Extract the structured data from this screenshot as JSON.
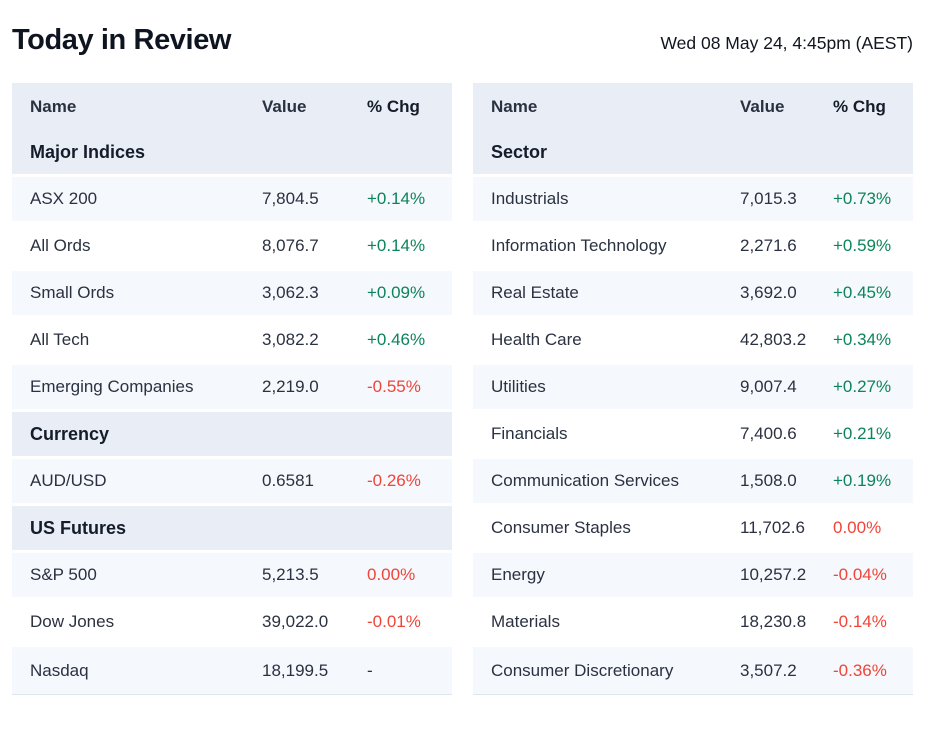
{
  "page": {
    "title": "Today in Review",
    "timestamp": "Wed 08 May 24, 4:45pm (AEST)"
  },
  "colors": {
    "positive": "#0c8459",
    "negative": "#f04438",
    "header_bg": "#e9eef6",
    "row_alt_bg": "#f5f8fc"
  },
  "tables": [
    {
      "id": "indices",
      "columns": [
        "Name",
        "Value",
        "% Chg"
      ],
      "sections": [
        {
          "label": "Major Indices",
          "rows": [
            {
              "name": "ASX 200",
              "value": "7,804.5",
              "chg": "+0.14%",
              "dir": "up"
            },
            {
              "name": "All Ords",
              "value": "8,076.7",
              "chg": "+0.14%",
              "dir": "up"
            },
            {
              "name": "Small Ords",
              "value": "3,062.3",
              "chg": "+0.09%",
              "dir": "up"
            },
            {
              "name": "All Tech",
              "value": "3,082.2",
              "chg": "+0.46%",
              "dir": "up"
            },
            {
              "name": "Emerging Companies",
              "value": "2,219.0",
              "chg": "-0.55%",
              "dir": "down"
            }
          ]
        },
        {
          "label": "Currency",
          "rows": [
            {
              "name": "AUD/USD",
              "value": "0.6581",
              "chg": "-0.26%",
              "dir": "down"
            }
          ]
        },
        {
          "label": "US Futures",
          "rows": [
            {
              "name": "S&P 500",
              "value": "5,213.5",
              "chg": "0.00%",
              "dir": "down"
            },
            {
              "name": "Dow Jones",
              "value": "39,022.0",
              "chg": "-0.01%",
              "dir": "down"
            },
            {
              "name": "Nasdaq",
              "value": "18,199.5",
              "chg": "-",
              "dir": "flat"
            }
          ]
        }
      ]
    },
    {
      "id": "sectors",
      "columns": [
        "Name",
        "Value",
        "% Chg"
      ],
      "sections": [
        {
          "label": "Sector",
          "rows": [
            {
              "name": "Industrials",
              "value": "7,015.3",
              "chg": "+0.73%",
              "dir": "up"
            },
            {
              "name": "Information Technology",
              "value": "2,271.6",
              "chg": "+0.59%",
              "dir": "up"
            },
            {
              "name": "Real Estate",
              "value": "3,692.0",
              "chg": "+0.45%",
              "dir": "up"
            },
            {
              "name": "Health Care",
              "value": "42,803.2",
              "chg": "+0.34%",
              "dir": "up"
            },
            {
              "name": "Utilities",
              "value": "9,007.4",
              "chg": "+0.27%",
              "dir": "up"
            },
            {
              "name": "Financials",
              "value": "7,400.6",
              "chg": "+0.21%",
              "dir": "up"
            },
            {
              "name": "Communication Services",
              "value": "1,508.0",
              "chg": "+0.19%",
              "dir": "up"
            },
            {
              "name": "Consumer Staples",
              "value": "11,702.6",
              "chg": "0.00%",
              "dir": "down"
            },
            {
              "name": "Energy",
              "value": "10,257.2",
              "chg": "-0.04%",
              "dir": "down"
            },
            {
              "name": "Materials",
              "value": "18,230.8",
              "chg": "-0.14%",
              "dir": "down"
            },
            {
              "name": "Consumer Discretionary",
              "value": "3,507.2",
              "chg": "-0.36%",
              "dir": "down"
            }
          ]
        }
      ]
    }
  ]
}
